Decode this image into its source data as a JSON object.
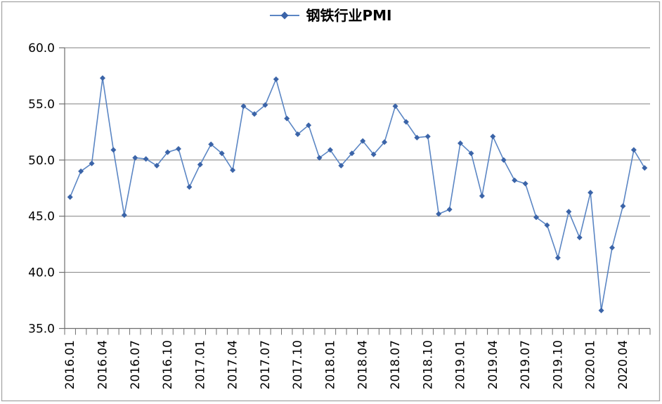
{
  "colors": {
    "line": "#5B86C4",
    "marker": "#3B64A8",
    "gridline": "#808080",
    "axis": "#6E6E6E",
    "border": "#A6A6A6",
    "text": "#000000"
  },
  "legend": {
    "label": "钢铁行业PMI"
  },
  "chart_data": {
    "type": "line",
    "title": "钢铁行业PMI",
    "marker": "diamond",
    "grid": true,
    "legend_position": "top-center",
    "ylim": [
      35,
      60
    ],
    "ytick_step": 5,
    "ytick_labels": [
      "35.0",
      "40.0",
      "45.0",
      "50.0",
      "55.0",
      "60.0"
    ],
    "xtick_every": 3,
    "xtick_labels": [
      "2016.01",
      "2016.04",
      "2016.07",
      "2016.10",
      "2017.01",
      "2017.04",
      "2017.07",
      "2017.10",
      "2018.01",
      "2018.04",
      "2018.07",
      "2018.10",
      "2019.01",
      "2019.04",
      "2019.07",
      "2019.10",
      "2020.01",
      "2020.04"
    ],
    "x": [
      "2016.01",
      "2016.02",
      "2016.03",
      "2016.04",
      "2016.05",
      "2016.06",
      "2016.07",
      "2016.08",
      "2016.09",
      "2016.10",
      "2016.11",
      "2016.12",
      "2017.01",
      "2017.02",
      "2017.03",
      "2017.04",
      "2017.05",
      "2017.06",
      "2017.07",
      "2017.08",
      "2017.09",
      "2017.10",
      "2017.11",
      "2017.12",
      "2018.01",
      "2018.02",
      "2018.03",
      "2018.04",
      "2018.05",
      "2018.06",
      "2018.07",
      "2018.08",
      "2018.09",
      "2018.10",
      "2018.11",
      "2018.12",
      "2019.01",
      "2019.02",
      "2019.03",
      "2019.04",
      "2019.05",
      "2019.06",
      "2019.07",
      "2019.08",
      "2019.09",
      "2019.10",
      "2019.11",
      "2019.12",
      "2020.01",
      "2020.02",
      "2020.03",
      "2020.04",
      "2020.05",
      "2020.06"
    ],
    "series": [
      {
        "name": "钢铁行业PMI",
        "values": [
          46.7,
          49.0,
          49.7,
          57.3,
          50.9,
          45.1,
          50.2,
          50.1,
          49.5,
          50.7,
          51.0,
          47.6,
          49.6,
          51.4,
          50.6,
          49.1,
          54.8,
          54.1,
          54.9,
          57.2,
          53.7,
          52.3,
          53.1,
          50.2,
          50.9,
          49.5,
          50.6,
          51.7,
          50.5,
          51.6,
          54.8,
          53.4,
          52.0,
          52.1,
          45.2,
          45.6,
          51.5,
          50.6,
          46.8,
          52.1,
          50.0,
          48.2,
          47.9,
          44.9,
          44.2,
          41.3,
          45.4,
          43.1,
          47.1,
          36.6,
          42.2,
          45.9,
          50.9,
          49.3
        ]
      }
    ]
  }
}
